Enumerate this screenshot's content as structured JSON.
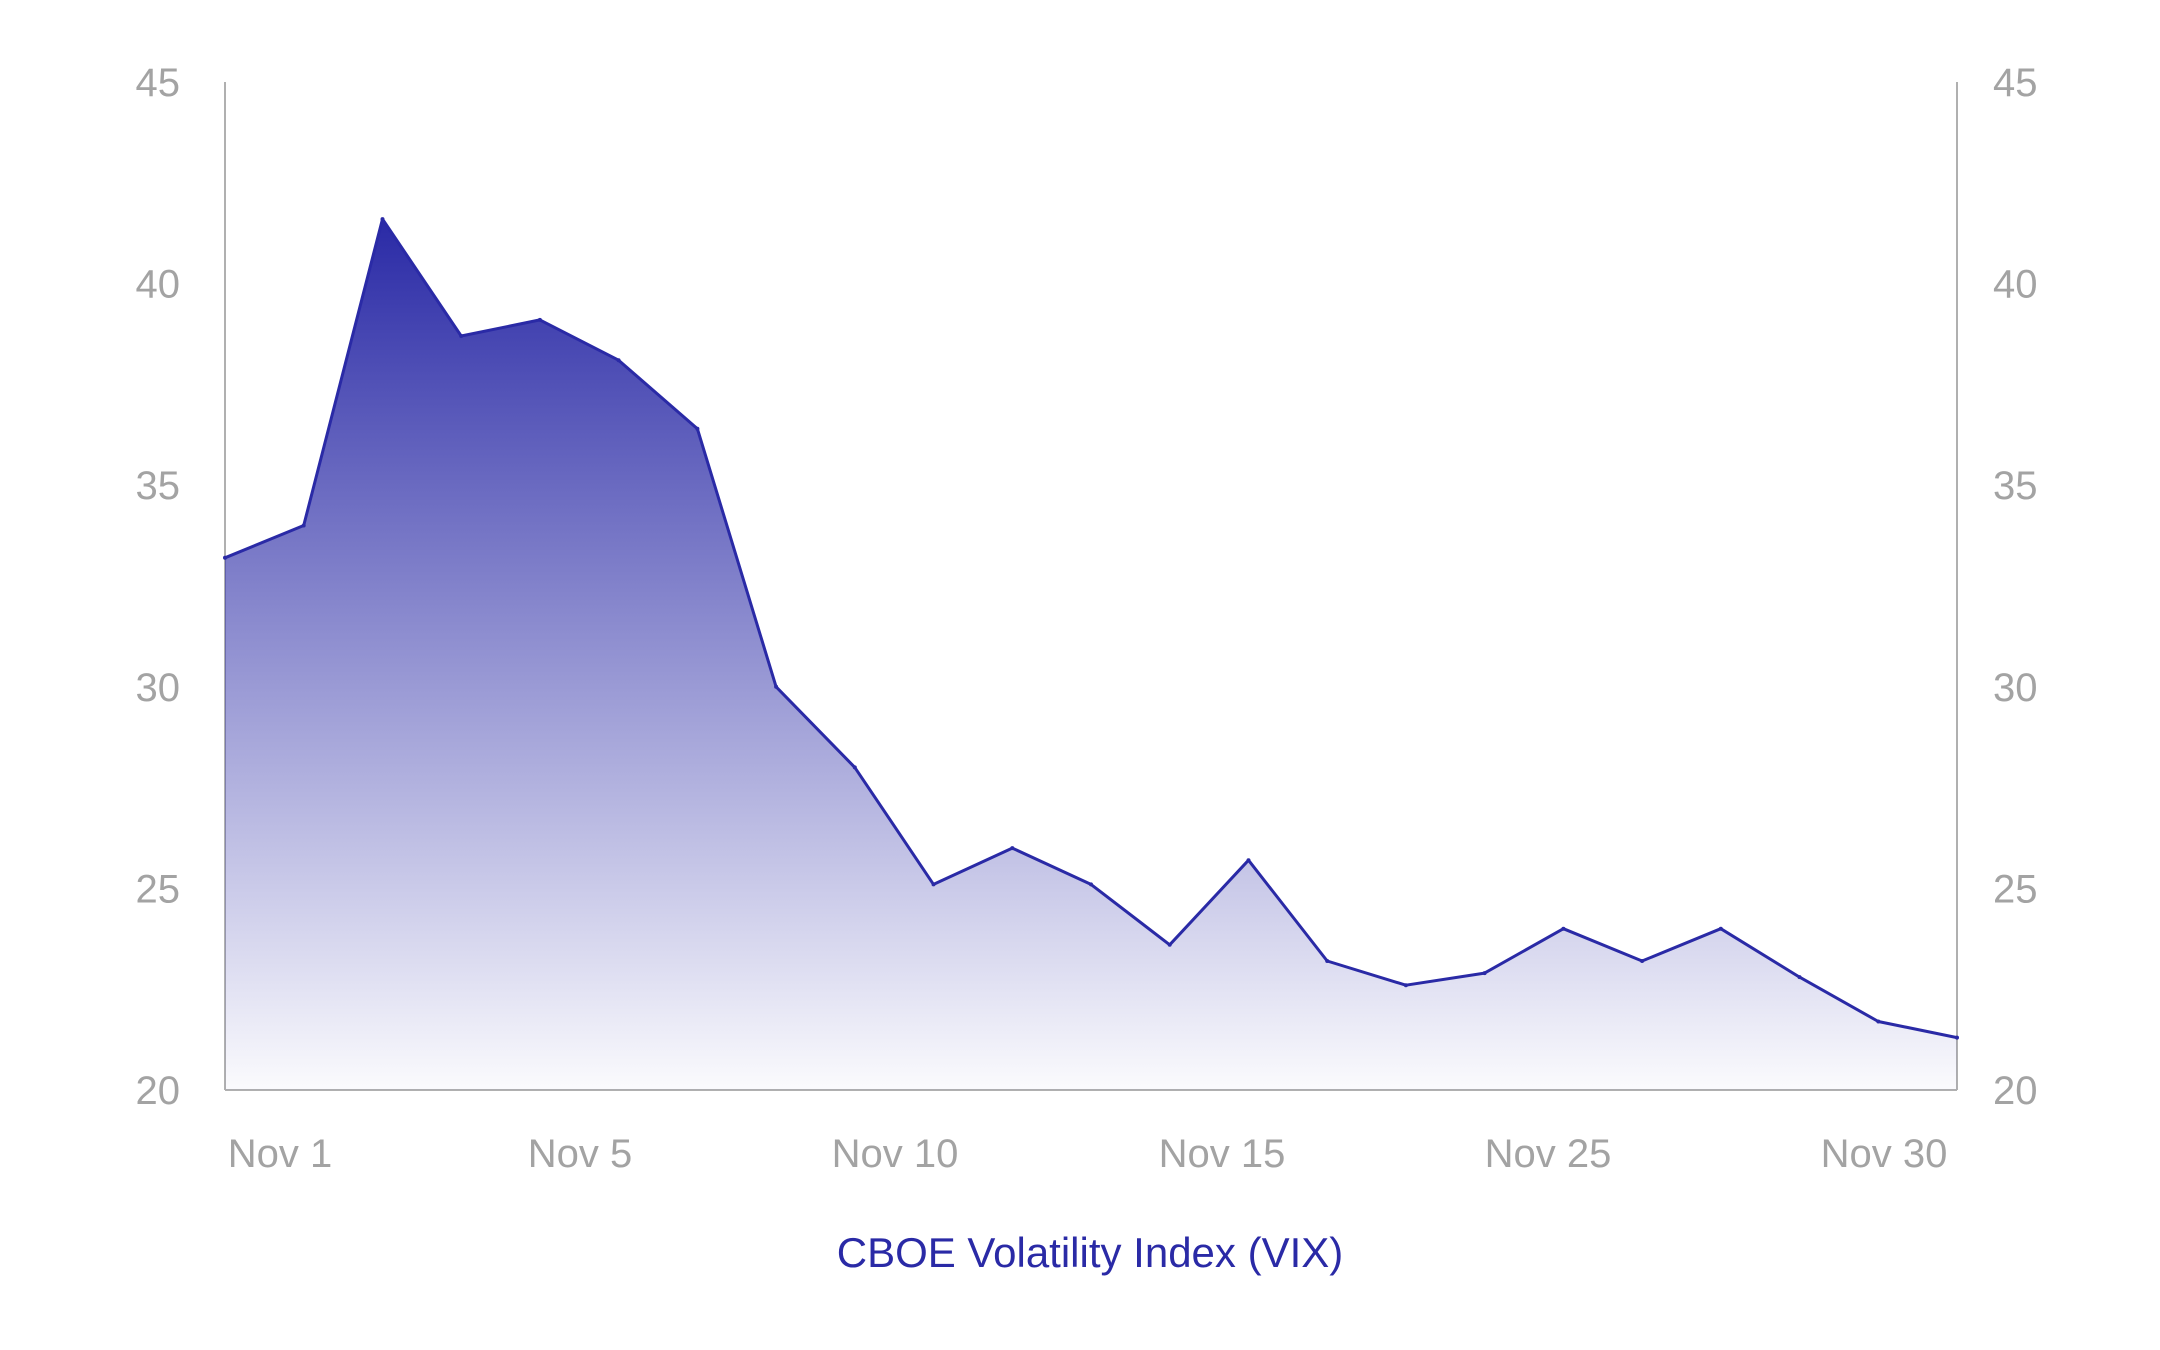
{
  "chart_data": {
    "type": "area",
    "title": "",
    "xlabel": "",
    "ylabel": "",
    "ylim": [
      20,
      45
    ],
    "y_ticks": [
      "20",
      "25",
      "30",
      "35",
      "40",
      "45"
    ],
    "y_tick_values": [
      20,
      25,
      30,
      35,
      40,
      45
    ],
    "y_axes": "left-and-right",
    "grid": false,
    "x_tick_labels": [
      "Nov 1",
      "Nov 5",
      "Nov 10",
      "Nov 15",
      "Nov 25",
      "Nov 30"
    ],
    "x_tick_index": [
      0,
      4,
      8,
      12,
      16,
      20
    ],
    "series": [
      {
        "name": "CBOE Volatility Index (VIX)",
        "color": "#2a2aa6",
        "values": [
          33.2,
          34.0,
          41.6,
          38.7,
          39.1,
          38.1,
          36.4,
          30.0,
          28.0,
          25.1,
          26.0,
          25.1,
          23.6,
          25.7,
          23.2,
          22.6,
          22.9,
          24.0,
          23.2,
          24.0,
          22.8,
          21.7,
          21.3
        ]
      }
    ],
    "legend": "bottom-center"
  }
}
